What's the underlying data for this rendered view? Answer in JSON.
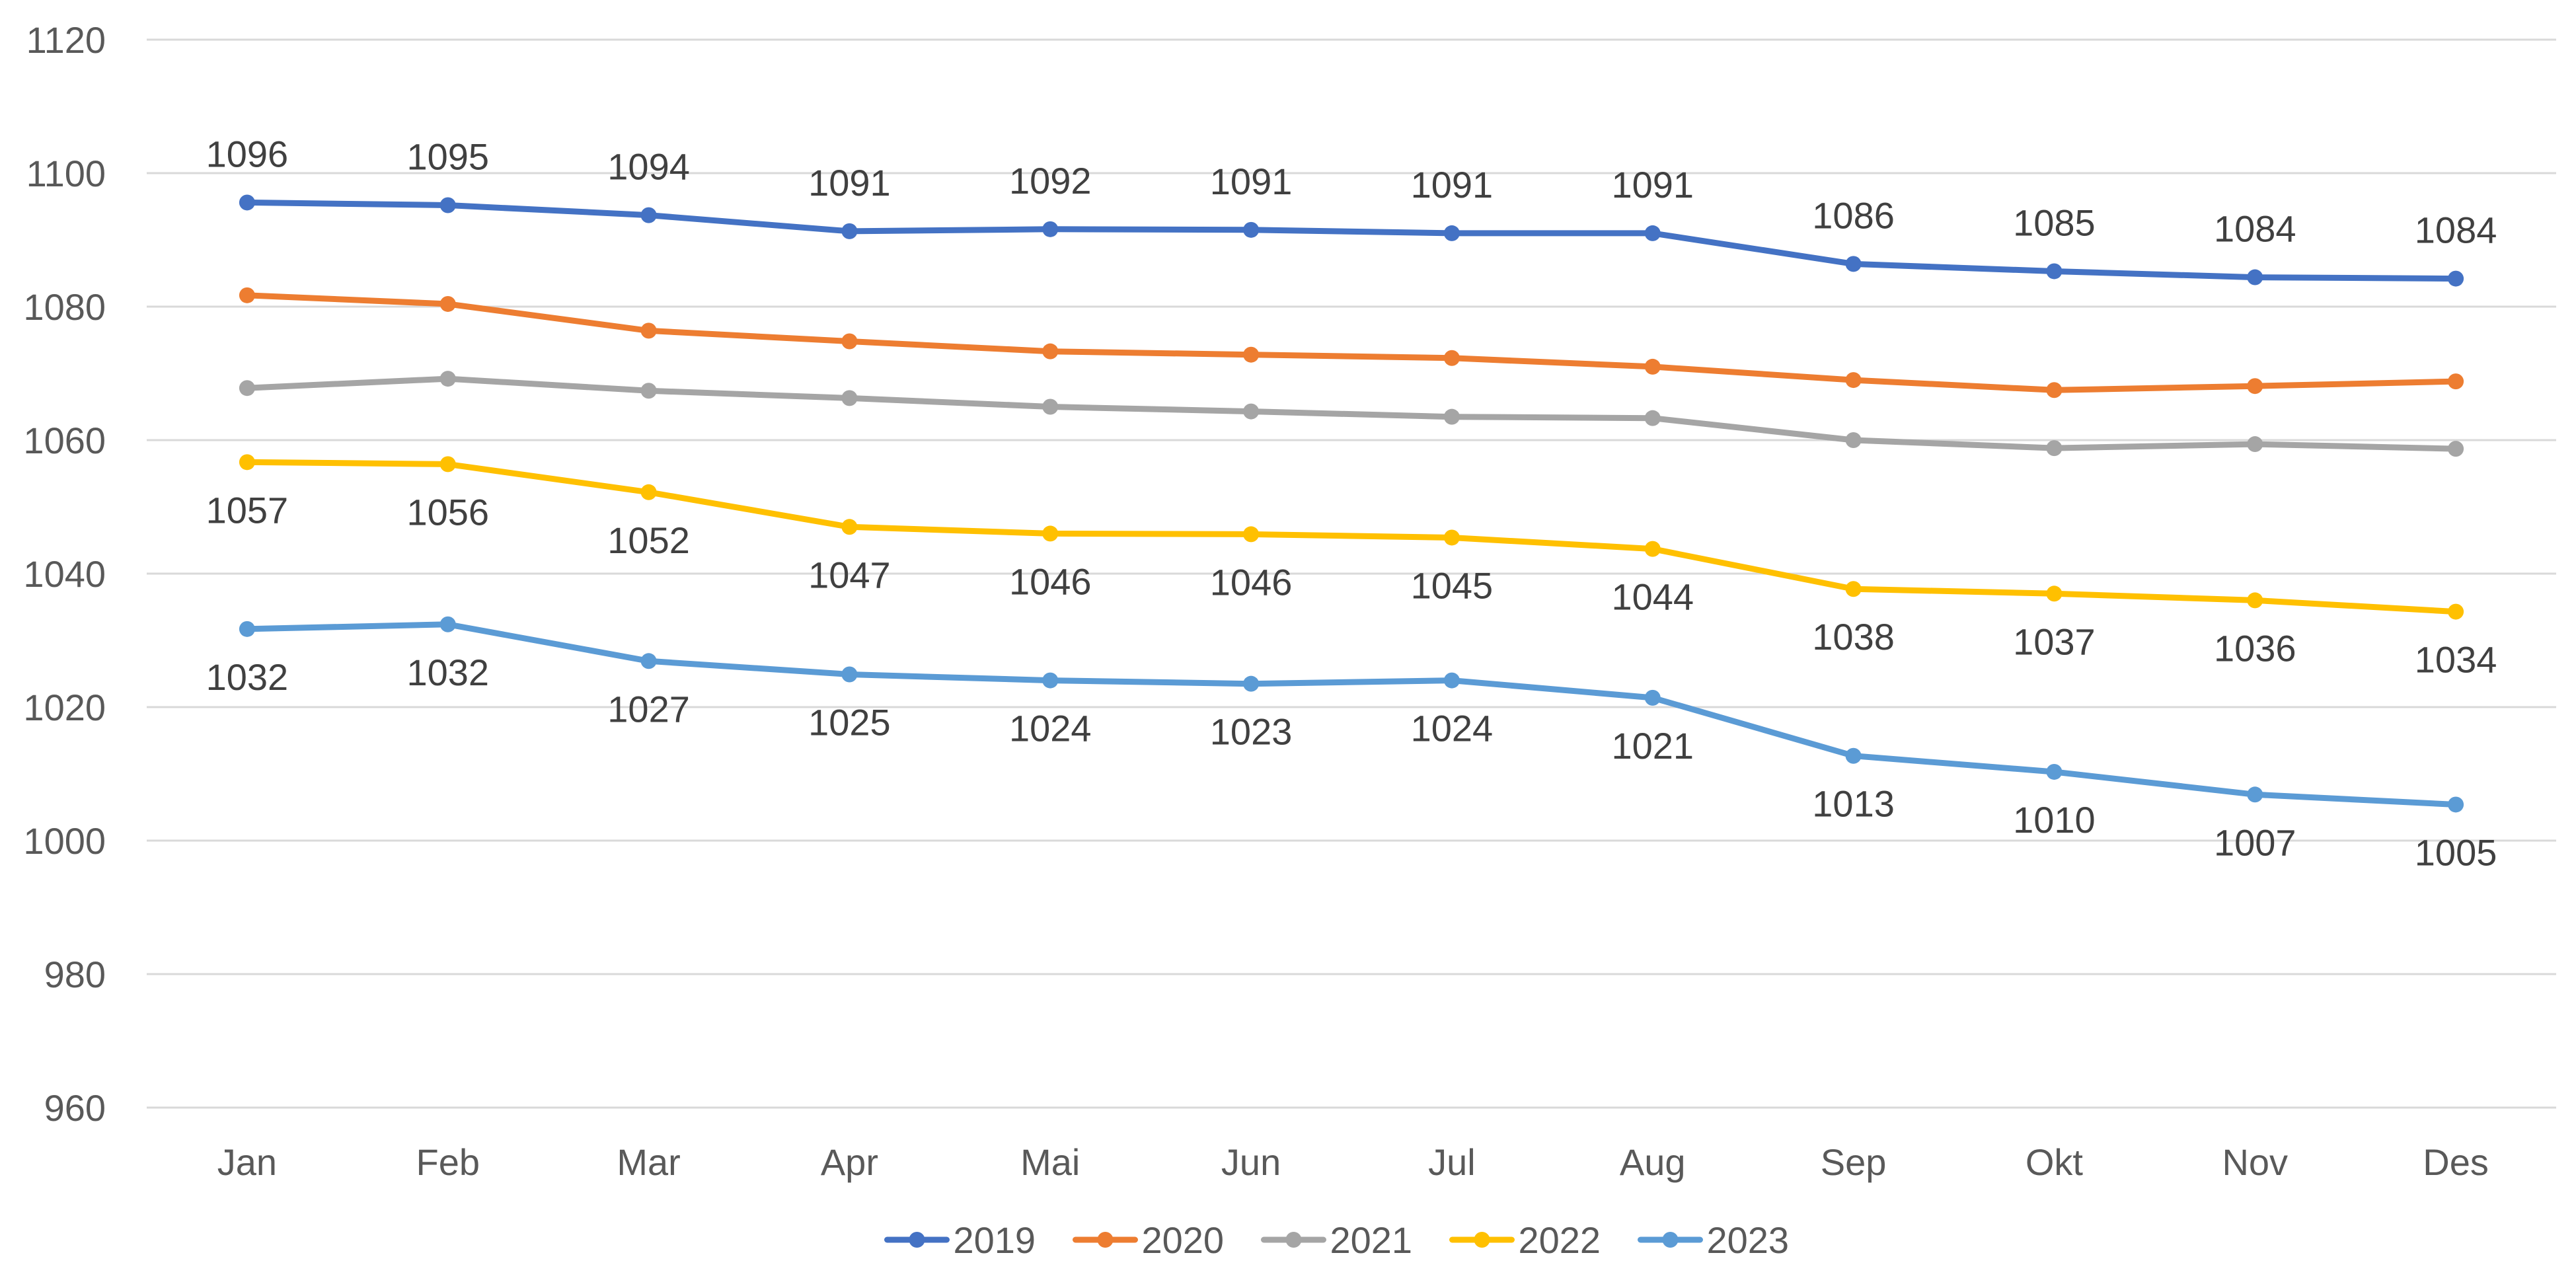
{
  "chart_data": {
    "type": "line",
    "title": "",
    "xlabel": "",
    "ylabel": "",
    "categories": [
      "Jan",
      "Feb",
      "Mar",
      "Apr",
      "Mai",
      "Jun",
      "Jul",
      "Aug",
      "Sep",
      "Okt",
      "Nov",
      "Des"
    ],
    "ylim": [
      960,
      1120
    ],
    "yticks": [
      960,
      980,
      1000,
      1020,
      1040,
      1060,
      1080,
      1100,
      1120
    ],
    "grid": true,
    "legend_position": "bottom",
    "series": [
      {
        "name": "2019",
        "color": "#4472C4",
        "labels_shown": true,
        "label_placement": "above",
        "values": [
          1095.6,
          1095.2,
          1093.7,
          1091.3,
          1091.6,
          1091.5,
          1091.0,
          1091.0,
          1086.4,
          1085.3,
          1084.4,
          1084.2
        ],
        "data_labels": [
          "1096",
          "1095",
          "1094",
          "1091",
          "1092",
          "1091",
          "1091",
          "1091",
          "1086",
          "1085",
          "1084",
          "1084"
        ]
      },
      {
        "name": "2020",
        "color": "#ED7D31",
        "labels_shown": false,
        "values": [
          1081.7,
          1080.4,
          1076.4,
          1074.8,
          1073.3,
          1072.8,
          1072.3,
          1071.0,
          1069.0,
          1067.5,
          1068.1,
          1068.8
        ],
        "data_labels": []
      },
      {
        "name": "2021",
        "color": "#A5A5A5",
        "labels_shown": false,
        "values": [
          1067.8,
          1069.2,
          1067.4,
          1066.3,
          1065.0,
          1064.3,
          1063.5,
          1063.3,
          1060.0,
          1058.8,
          1059.4,
          1058.7
        ],
        "data_labels": []
      },
      {
        "name": "2022",
        "color": "#FFC000",
        "labels_shown": true,
        "label_placement": "below",
        "values": [
          1056.7,
          1056.4,
          1052.2,
          1047.0,
          1046.0,
          1045.9,
          1045.4,
          1043.7,
          1037.7,
          1037.0,
          1036.0,
          1034.3
        ],
        "data_labels": [
          "1057",
          "1056",
          "1052",
          "1047",
          "1046",
          "1046",
          "1045",
          "1044",
          "1038",
          "1037",
          "1036",
          "1034"
        ]
      },
      {
        "name": "2023",
        "color": "#5B9BD5",
        "labels_shown": true,
        "label_placement": "below",
        "values": [
          1031.7,
          1032.4,
          1026.9,
          1024.9,
          1024.0,
          1023.5,
          1024.0,
          1021.4,
          1012.7,
          1010.3,
          1006.9,
          1005.4
        ],
        "data_labels": [
          "1032",
          "1032",
          "1027",
          "1025",
          "1024",
          "1023",
          "1024",
          "1021",
          "1013",
          "1010",
          "1007",
          "1005"
        ]
      }
    ]
  }
}
